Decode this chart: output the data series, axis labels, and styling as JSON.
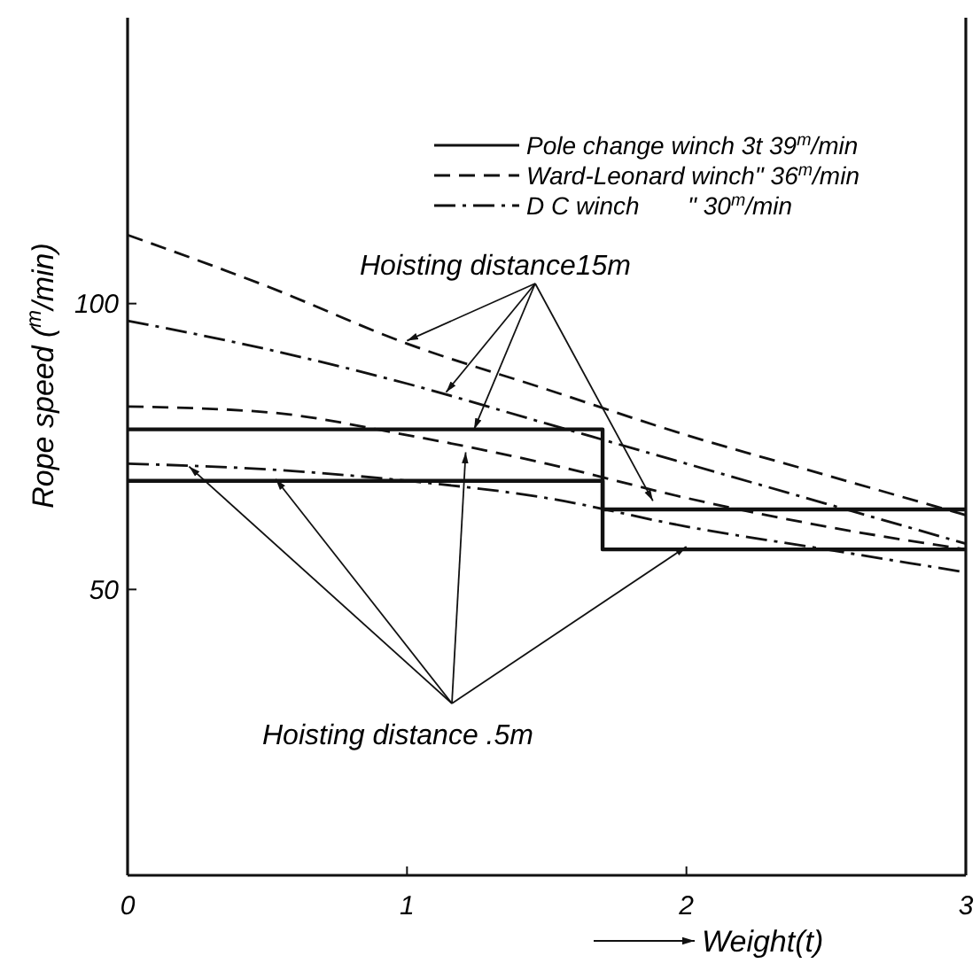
{
  "chart_data": {
    "type": "line",
    "xlabel": "Weight(t)",
    "ylabel": "Rope speed ($^{m}$/min)",
    "xlim": [
      0,
      3
    ],
    "xticks": [
      0,
      1,
      2,
      3
    ],
    "ylim": [
      0,
      150
    ],
    "yticks": [
      50,
      100
    ],
    "grid": false,
    "legend": "top right",
    "marker": "none",
    "annotations": [
      {
        "text": "Hoisting distance15m",
        "x": 1,
        "y": 93.5
      },
      {
        "text": "Hoisting distance .5m",
        "x": 2,
        "y": 57.5
      }
    ],
    "series": [
      {
        "name": "Pole change winch 3t 39$^{m}$/min",
        "color": "#111111",
        "line_style": "solid",
        "x": [
          0,
          1.7,
          1.7,
          3
        ],
        "values": [
          78,
          78,
          64,
          64
        ]
      },
      {
        "color": "#111111",
        "line_style": "solid",
        "x": [
          0,
          1.7,
          1.7,
          3
        ],
        "values": [
          69,
          69,
          57,
          57
        ]
      },
      {
        "name": "Ward-Leonard winch\" 36$^{m}$/min",
        "color": "#111111",
        "line_style": "dashed",
        "x": [
          0,
          0.5,
          1,
          1.5,
          2,
          2.5,
          3
        ],
        "values": [
          112,
          103,
          93,
          85,
          77,
          70,
          63
        ]
      },
      {
        "color": "#111111",
        "line_style": "dashed",
        "x": [
          0,
          0.5,
          1,
          1.5,
          2,
          2.5,
          3
        ],
        "values": [
          82,
          81,
          77,
          72,
          66,
          61,
          57
        ]
      },
      {
        "name": "D C winch       \" 30$^{m}$/min",
        "color": "#111111",
        "line_style": "dashdot",
        "x": [
          0,
          0.5,
          1,
          1.5,
          2,
          2.5,
          3
        ],
        "values": [
          97,
          92,
          86,
          79,
          72,
          65,
          58
        ]
      },
      {
        "color": "#111111",
        "line_style": "dashdot",
        "x": [
          0,
          0.5,
          1,
          1.5,
          2,
          2.5,
          3
        ],
        "values": [
          72,
          71,
          69,
          66,
          61,
          57,
          53
        ]
      }
    ]
  }
}
